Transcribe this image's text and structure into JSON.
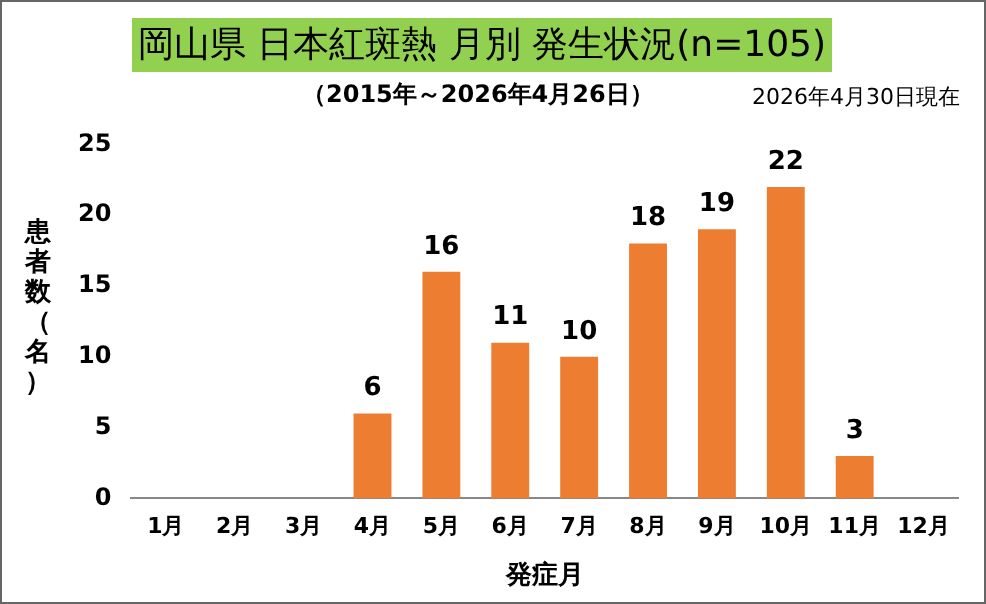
{
  "chart_data": {
    "type": "bar",
    "title": "岡山県 日本紅斑熱 月別 発生状況(n=105)",
    "subtitle": "（2015年～2026年4月26日）",
    "annotations": [
      "2026年4月30日現在"
    ],
    "xlabel": "発症月",
    "ylabel": "患者数（名）",
    "categories": [
      "1月",
      "2月",
      "3月",
      "4月",
      "5月",
      "6月",
      "7月",
      "8月",
      "9月",
      "10月",
      "11月",
      "12月"
    ],
    "values": [
      0,
      0,
      0,
      6,
      16,
      11,
      10,
      18,
      19,
      22,
      3,
      0
    ],
    "value_labels": [
      null,
      null,
      null,
      "6",
      "16",
      "11",
      "10",
      "18",
      "19",
      "22",
      "3",
      null
    ],
    "color": "#ed7d31",
    "ylim": [
      0,
      25
    ],
    "yticks": [
      0,
      5,
      10,
      15,
      20,
      25
    ],
    "grid": false,
    "legend": false
  }
}
